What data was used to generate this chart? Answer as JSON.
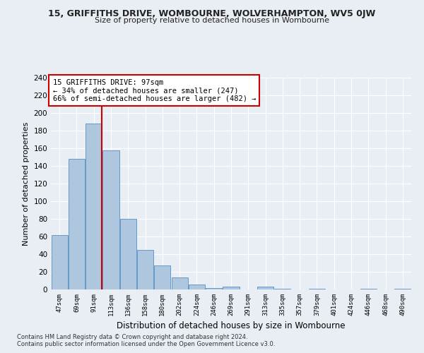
{
  "title_line1": "15, GRIFFITHS DRIVE, WOMBOURNE, WOLVERHAMPTON, WV5 0JW",
  "title_line2": "Size of property relative to detached houses in Wombourne",
  "xlabel": "Distribution of detached houses by size in Wombourne",
  "ylabel": "Number of detached properties",
  "categories": [
    "47sqm",
    "69sqm",
    "91sqm",
    "113sqm",
    "136sqm",
    "158sqm",
    "180sqm",
    "202sqm",
    "224sqm",
    "246sqm",
    "269sqm",
    "291sqm",
    "313sqm",
    "335sqm",
    "357sqm",
    "379sqm",
    "401sqm",
    "424sqm",
    "446sqm",
    "468sqm",
    "490sqm"
  ],
  "values": [
    62,
    148,
    188,
    158,
    80,
    45,
    27,
    14,
    6,
    2,
    3,
    0,
    3,
    1,
    0,
    1,
    0,
    0,
    1,
    0,
    1
  ],
  "bar_color": "#aec6de",
  "bar_edge_color": "#6699cc",
  "vline_color": "#cc0000",
  "vline_x_index": 2,
  "annotation_text": "15 GRIFFITHS DRIVE: 97sqm\n← 34% of detached houses are smaller (247)\n66% of semi-detached houses are larger (482) →",
  "annotation_box_color": "#ffffff",
  "annotation_box_edge": "#cc0000",
  "ylim": [
    0,
    240
  ],
  "yticks": [
    0,
    20,
    40,
    60,
    80,
    100,
    120,
    140,
    160,
    180,
    200,
    220,
    240
  ],
  "footnote1": "Contains HM Land Registry data © Crown copyright and database right 2024.",
  "footnote2": "Contains public sector information licensed under the Open Government Licence v3.0.",
  "background_color": "#e8eef4",
  "grid_color": "#ffffff"
}
